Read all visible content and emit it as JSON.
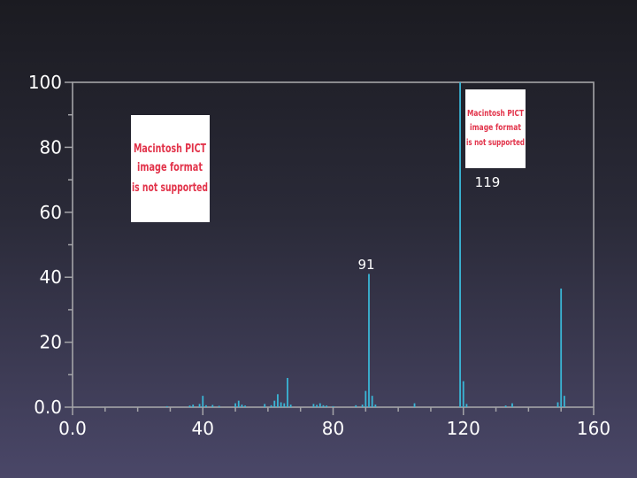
{
  "chart_data": {
    "type": "bar",
    "title": "",
    "xlabel": "",
    "ylabel": "",
    "xlim": [
      0,
      160
    ],
    "ylim": [
      0,
      100
    ],
    "x_ticks": [
      0,
      40,
      80,
      120,
      160
    ],
    "x_tick_labels": [
      "0.0",
      "40",
      "80",
      "120",
      "160"
    ],
    "y_ticks": [
      0,
      20,
      40,
      60,
      80,
      100
    ],
    "y_tick_labels": [
      "0.0",
      "20",
      "40",
      "60",
      "80",
      "100"
    ],
    "grid": false,
    "bar_color": "#3ab6d6",
    "series": [
      {
        "x": [
          29,
          36,
          37,
          39,
          40,
          41,
          43,
          45,
          50,
          51,
          52,
          53,
          59,
          61,
          62,
          63,
          64,
          65,
          66,
          67,
          74,
          75,
          76,
          77,
          78,
          80,
          87,
          89,
          90,
          91,
          92,
          93,
          105,
          119,
          120,
          121,
          133,
          135,
          149,
          150,
          151
        ],
        "values": [
          0.3,
          0.5,
          0.8,
          1.0,
          3.5,
          0.6,
          0.7,
          0.4,
          1.2,
          2.0,
          0.8,
          0.5,
          1.0,
          0.6,
          2.0,
          4.0,
          1.5,
          1.2,
          9.0,
          0.8,
          1.0,
          0.7,
          1.2,
          0.6,
          0.5,
          0.3,
          0.6,
          0.8,
          5.0,
          41,
          3.5,
          0.8,
          1.2,
          100,
          8.0,
          1.0,
          0.5,
          1.2,
          1.5,
          36.5,
          3.5
        ]
      }
    ],
    "annotations": [
      {
        "x": 119,
        "y": 100,
        "text": "119"
      },
      {
        "x": 91,
        "y": 41,
        "text": "91"
      }
    ]
  },
  "placeholders": [
    {
      "lines": [
        "Macintosh PICT",
        "image format",
        "is not supported"
      ]
    },
    {
      "lines": [
        "Macintosh PICT",
        "image format",
        "is not supported"
      ]
    }
  ]
}
